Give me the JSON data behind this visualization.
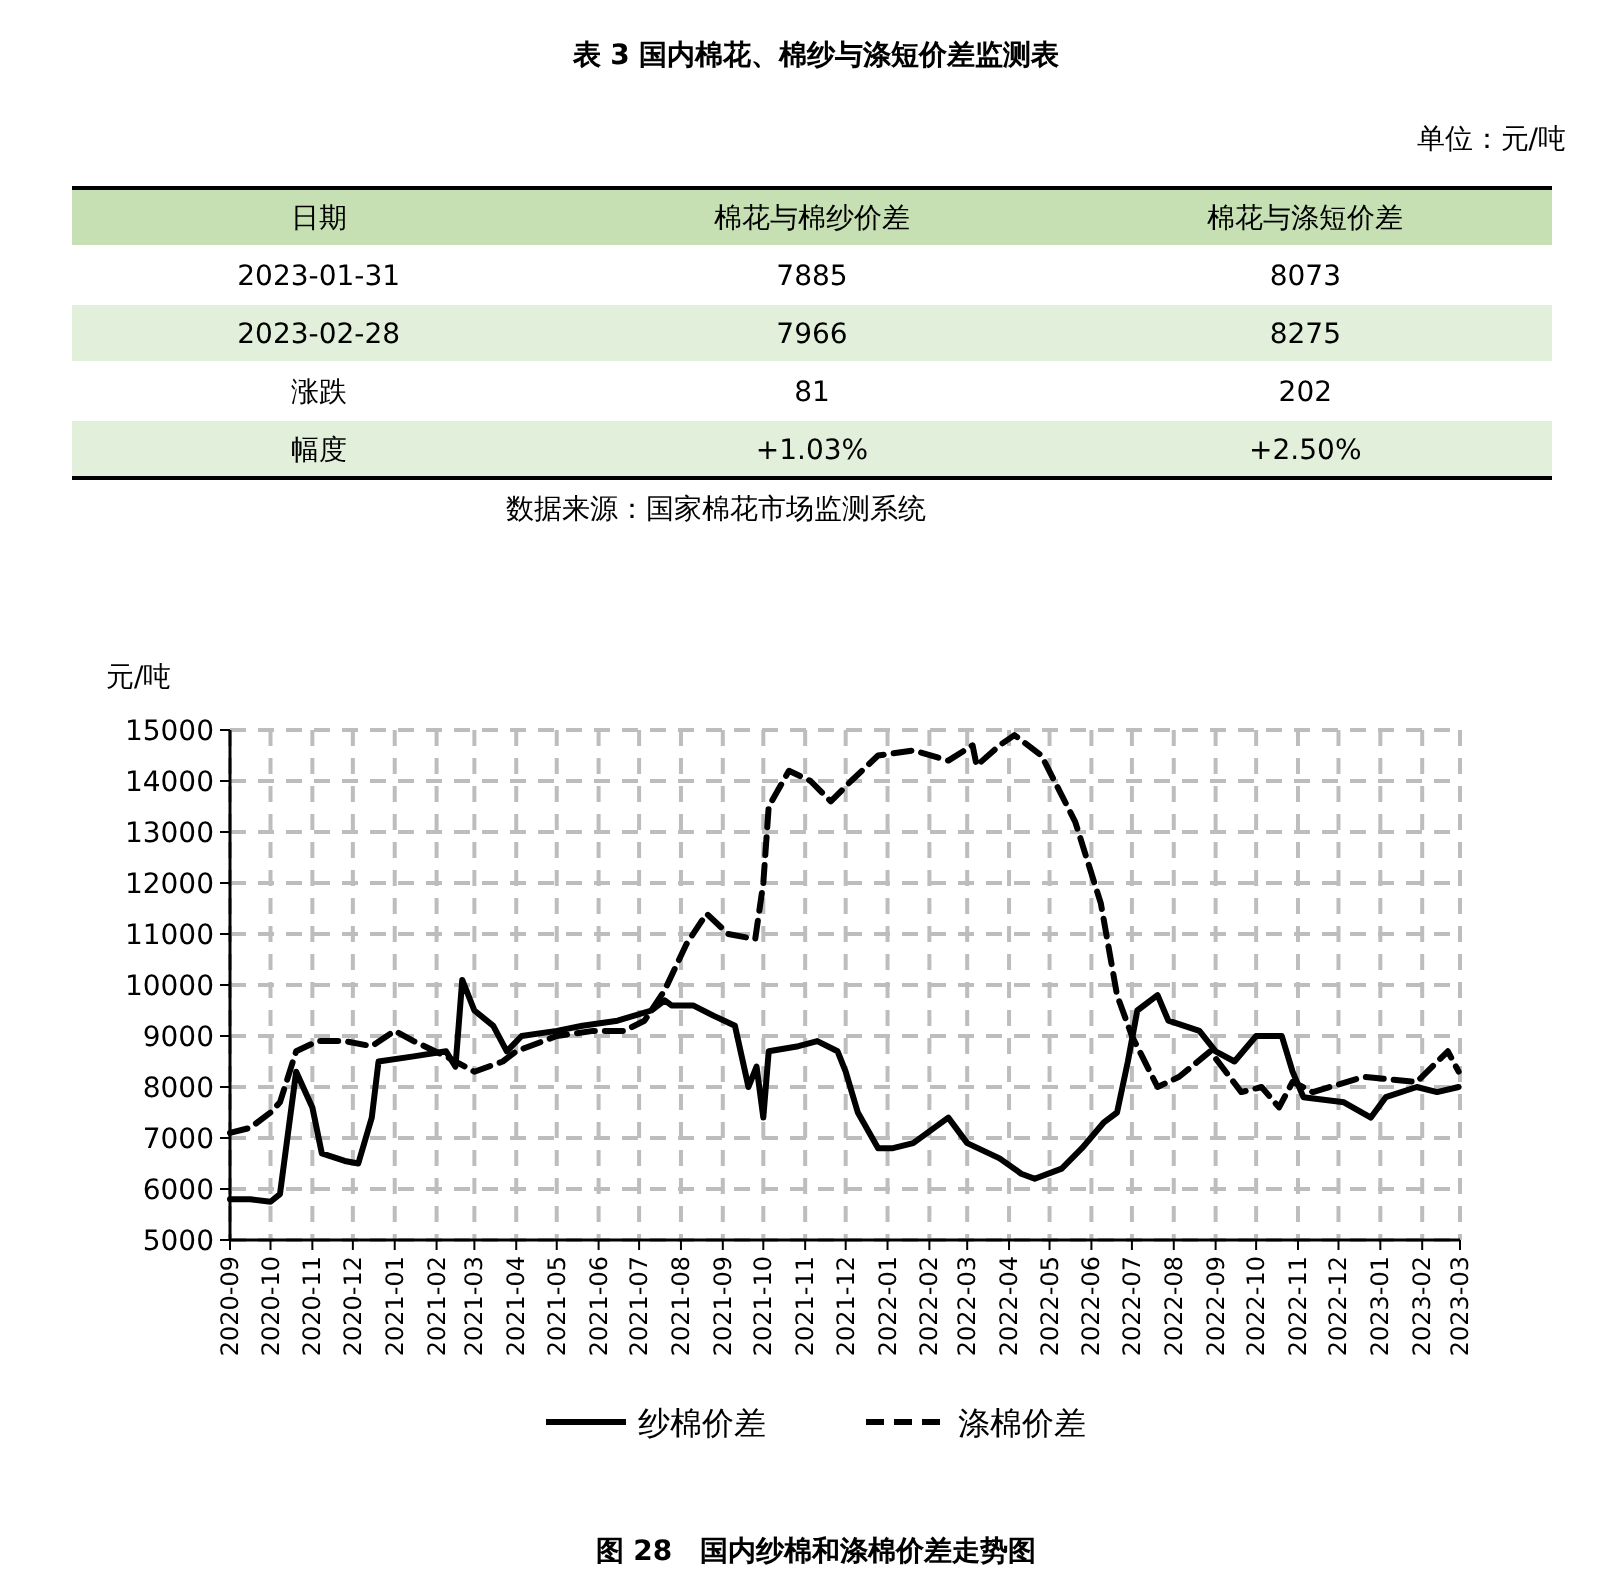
{
  "chart_data": [
    {
      "type": "other",
      "title": "表 3 国内棉花、棉纱与涤短价差监测表",
      "subtitle": "单位：元/吨",
      "categories": [
        "日期",
        "棉花与棉纱价差",
        "棉花与涤短价差"
      ],
      "cell_labels": [
        [
          "2023-01-31",
          "7885",
          "8073"
        ],
        [
          "2023-02-28",
          "7966",
          "8275"
        ],
        [
          "涨跌",
          "81",
          "202"
        ],
        [
          "幅度",
          "+1.03%",
          "+2.50%"
        ]
      ],
      "annotations": [
        "数据来源：国家棉花市场监测系统"
      ]
    },
    {
      "type": "line",
      "title": "图 28　国内纱棉和涤棉价差走势图",
      "ylabel": "元/吨",
      "ylim": [
        5000,
        15000
      ],
      "yticks": [
        5000,
        6000,
        7000,
        8000,
        9000,
        10000,
        11000,
        12000,
        13000,
        14000,
        15000
      ],
      "xlim": [
        "2020-09",
        "2023-03"
      ],
      "xticks": [
        "2020-09",
        "2020-10",
        "2020-11",
        "2020-12",
        "2021-01",
        "2021-02",
        "2021-03",
        "2021-04",
        "2021-05",
        "2021-06",
        "2021-07",
        "2021-08",
        "2021-09",
        "2021-10",
        "2021-11",
        "2021-12",
        "2022-01",
        "2022-02",
        "2022-03",
        "2022-04",
        "2022-05",
        "2022-06",
        "2022-07",
        "2022-08",
        "2022-09",
        "2022-10",
        "2022-11",
        "2022-12",
        "2023-01",
        "2023-02",
        "2023-03"
      ],
      "grid": true,
      "legend": "bottom",
      "marker": "none",
      "series": [
        {
          "name": "纱棉价差",
          "color": "#000000",
          "line_style": "solid",
          "x": [
            "2020-09-01",
            "2020-09-16",
            "2020-10-01",
            "2020-10-08",
            "2020-10-20",
            "2020-11-01",
            "2020-11-08",
            "2020-11-25",
            "2020-12-05",
            "2020-12-15",
            "2020-12-20",
            "2021-01-15",
            "2021-02-08",
            "2021-02-15",
            "2021-02-20",
            "2021-03-01",
            "2021-03-15",
            "2021-03-25",
            "2021-04-05",
            "2021-05-01",
            "2021-05-20",
            "2021-06-15",
            "2021-07-10",
            "2021-07-20",
            "2021-07-25",
            "2021-08-10",
            "2021-08-25",
            "2021-09-10",
            "2021-09-20",
            "2021-09-26",
            "2021-10-01",
            "2021-10-05",
            "2021-10-27",
            "2021-11-10",
            "2021-11-25",
            "2021-12-01",
            "2021-12-10",
            "2021-12-25",
            "2022-01-05",
            "2022-01-20",
            "2022-02-15",
            "2022-03-01",
            "2022-03-25",
            "2022-04-10",
            "2022-04-20",
            "2022-05-10",
            "2022-05-25",
            "2022-06-10",
            "2022-06-20",
            "2022-06-28",
            "2022-07-05",
            "2022-07-20",
            "2022-07-28",
            "2022-08-20",
            "2022-09-01",
            "2022-09-15",
            "2022-10-01",
            "2022-10-20",
            "2022-10-28",
            "2022-11-05",
            "2022-12-05",
            "2022-12-25",
            "2023-01-05",
            "2023-01-28",
            "2023-02-12",
            "2023-02-28"
          ],
          "values": [
            5800,
            5800,
            5750,
            5900,
            8300,
            7600,
            6700,
            6550,
            6500,
            7400,
            8500,
            8600,
            8700,
            8400,
            10100,
            9500,
            9200,
            8700,
            9000,
            9100,
            9200,
            9300,
            9500,
            9700,
            9600,
            9600,
            9400,
            9200,
            8000,
            8400,
            7400,
            8700,
            8800,
            8900,
            8700,
            8300,
            7500,
            6800,
            6800,
            6900,
            7400,
            6900,
            6600,
            6300,
            6200,
            6400,
            6800,
            7300,
            7500,
            8500,
            9500,
            9800,
            9300,
            9100,
            8700,
            8500,
            9000,
            9000,
            8300,
            7800,
            7700,
            7400,
            7800,
            8000,
            7900,
            8000
          ]
        },
        {
          "name": "涤棉价差",
          "color": "#000000",
          "line_style": "dashed",
          "x": [
            "2020-09-01",
            "2020-09-16",
            "2020-10-01",
            "2020-10-08",
            "2020-10-20",
            "2020-11-05",
            "2020-11-25",
            "2020-12-15",
            "2021-01-01",
            "2021-01-15",
            "2021-02-08",
            "2021-03-01",
            "2021-03-22",
            "2021-04-01",
            "2021-05-01",
            "2021-05-28",
            "2021-06-20",
            "2021-07-05",
            "2021-07-20",
            "2021-08-05",
            "2021-08-20",
            "2021-09-05",
            "2021-09-25",
            "2021-10-01",
            "2021-10-05",
            "2021-10-20",
            "2021-11-05",
            "2021-11-20",
            "2021-12-05",
            "2021-12-25",
            "2022-01-20",
            "2022-02-15",
            "2022-03-05",
            "2022-03-08",
            "2022-03-25",
            "2022-04-05",
            "2022-04-25",
            "2022-05-20",
            "2022-06-08",
            "2022-06-20",
            "2022-07-01",
            "2022-07-20",
            "2022-08-05",
            "2022-08-28",
            "2022-09-20",
            "2022-10-05",
            "2022-10-18",
            "2022-10-28",
            "2022-11-12",
            "2022-12-20",
            "2023-01-28",
            "2023-02-20",
            "2023-02-28"
          ],
          "values": [
            7100,
            7200,
            7500,
            7700,
            8700,
            8900,
            8900,
            8800,
            9100,
            8900,
            8600,
            8300,
            8500,
            8700,
            9000,
            9100,
            9100,
            9300,
            9900,
            10800,
            11400,
            11000,
            10900,
            12000,
            13500,
            14200,
            14000,
            13600,
            14000,
            14500,
            14600,
            14400,
            14700,
            14300,
            14700,
            14900,
            14500,
            13200,
            11600,
            9800,
            9000,
            8000,
            8200,
            8700,
            7900,
            8000,
            7600,
            8100,
            7900,
            8200,
            8100,
            8700,
            8300
          ]
        }
      ]
    }
  ]
}
